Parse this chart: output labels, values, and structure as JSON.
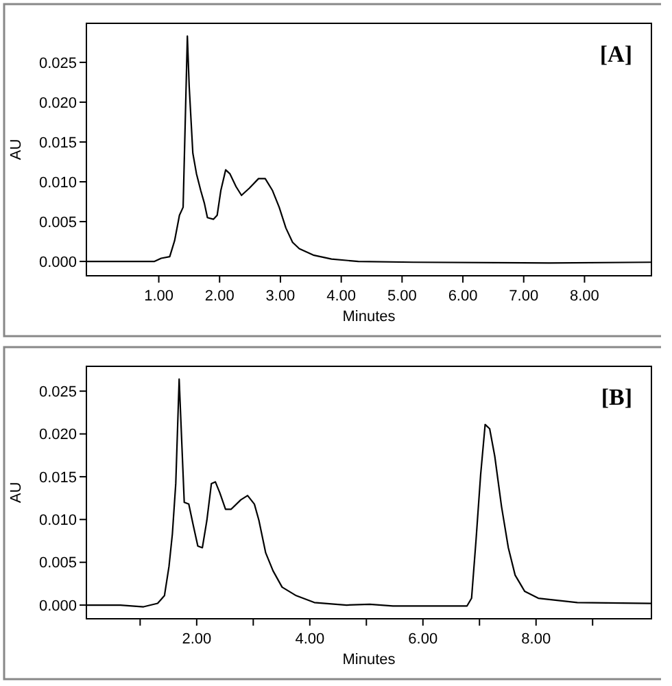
{
  "chart_data": [
    {
      "type": "line",
      "xlabel": "Minutes",
      "ylabel": "AU",
      "annotations": [
        "[A]"
      ],
      "grid": false,
      "marker": "none",
      "line_style": "solid",
      "xlim": [
        -0.19,
        9.1
      ],
      "ylim": [
        -0.0018,
        0.0299
      ],
      "xticks": [
        {
          "value": 1,
          "label": "1.00"
        },
        {
          "value": 2,
          "label": "2.00"
        },
        {
          "value": 3,
          "label": "3.00"
        },
        {
          "value": 4,
          "label": "4.00"
        },
        {
          "value": 5,
          "label": "5.00"
        },
        {
          "value": 6,
          "label": "6.00"
        },
        {
          "value": 7,
          "label": "7.00"
        },
        {
          "value": 8,
          "label": "8.00"
        }
      ],
      "yticks": [
        {
          "value": 0,
          "label": "0.000"
        },
        {
          "value": 0.005,
          "label": "0.005"
        },
        {
          "value": 0.01,
          "label": "0.010"
        },
        {
          "value": 0.015,
          "label": "0.015"
        },
        {
          "value": 0.02,
          "label": "0.020"
        },
        {
          "value": 0.025,
          "label": "0.025"
        }
      ],
      "series": [
        {
          "color": "#000000",
          "x": [
            -0.19,
            0.93,
            1.04,
            1.18,
            1.26,
            1.34,
            1.4,
            1.43,
            1.47,
            1.5,
            1.56,
            1.62,
            1.69,
            1.75,
            1.8,
            1.9,
            1.96,
            2.02,
            2.1,
            2.17,
            2.27,
            2.36,
            2.49,
            2.64,
            2.75,
            2.87,
            2.98,
            3.09,
            3.2,
            3.31,
            3.54,
            3.84,
            4.28,
            5.18,
            7.42,
            9.1
          ],
          "values": [
            0,
            0,
            0.0004,
            0.0006,
            0.0026,
            0.0058,
            0.0068,
            0.016,
            0.0283,
            0.022,
            0.0136,
            0.011,
            0.0089,
            0.0073,
            0.0055,
            0.0053,
            0.0058,
            0.0089,
            0.0115,
            0.011,
            0.0094,
            0.0083,
            0.0092,
            0.0104,
            0.0104,
            0.0089,
            0.0068,
            0.0042,
            0.0024,
            0.0016,
            0.0008,
            0.0003,
            0,
            -0.0001,
            -0.0002,
            -0.0001
          ]
        }
      ]
    },
    {
      "type": "line",
      "xlabel": "Minutes",
      "ylabel": "AU",
      "annotations": [
        "[B]"
      ],
      "grid": false,
      "marker": "none",
      "line_style": "solid",
      "xlim": [
        0.05,
        10.04
      ],
      "ylim": [
        -0.0016,
        0.0279
      ],
      "xticks": [
        {
          "value": 1,
          "label": null
        },
        {
          "value": 2,
          "label": "2.00"
        },
        {
          "value": 3,
          "label": null
        },
        {
          "value": 4,
          "label": "4.00"
        },
        {
          "value": 5,
          "label": null
        },
        {
          "value": 6,
          "label": "6.00"
        },
        {
          "value": 7,
          "label": null
        },
        {
          "value": 8,
          "label": "8.00"
        },
        {
          "value": 9,
          "label": null
        }
      ],
      "yticks": [
        {
          "value": 0,
          "label": "0.000"
        },
        {
          "value": 0.005,
          "label": "0.005"
        },
        {
          "value": 0.01,
          "label": "0.010"
        },
        {
          "value": 0.015,
          "label": "0.015"
        },
        {
          "value": 0.02,
          "label": "0.020"
        },
        {
          "value": 0.025,
          "label": "0.025"
        }
      ],
      "series": [
        {
          "color": "#000000",
          "x": [
            0.05,
            0.65,
            1.06,
            1.31,
            1.43,
            1.51,
            1.57,
            1.63,
            1.69,
            1.74,
            1.78,
            1.86,
            1.94,
            2.02,
            2.1,
            2.18,
            2.26,
            2.33,
            2.41,
            2.51,
            2.61,
            2.78,
            2.9,
            3.02,
            3.1,
            3.22,
            3.35,
            3.51,
            3.76,
            4.08,
            4.65,
            5.06,
            5.47,
            6.78,
            6.86,
            6.94,
            7.02,
            7.1,
            7.18,
            7.27,
            7.39,
            7.51,
            7.63,
            7.8,
            8.04,
            8.73,
            10.04
          ],
          "values": [
            0,
            0,
            -0.0002,
            0.0002,
            0.0011,
            0.0045,
            0.0083,
            0.0142,
            0.0264,
            0.0184,
            0.012,
            0.0118,
            0.0093,
            0.0069,
            0.0067,
            0.0099,
            0.0142,
            0.0144,
            0.0131,
            0.0112,
            0.0112,
            0.0123,
            0.0128,
            0.0118,
            0.0099,
            0.0061,
            0.004,
            0.0021,
            0.0011,
            0.0003,
            0,
            0.0001,
            -0.0001,
            -0.0001,
            0.0008,
            0.0077,
            0.0152,
            0.0211,
            0.0206,
            0.0174,
            0.0115,
            0.0067,
            0.0035,
            0.0016,
            0.0008,
            0.0003,
            0.0002
          ]
        }
      ]
    }
  ]
}
